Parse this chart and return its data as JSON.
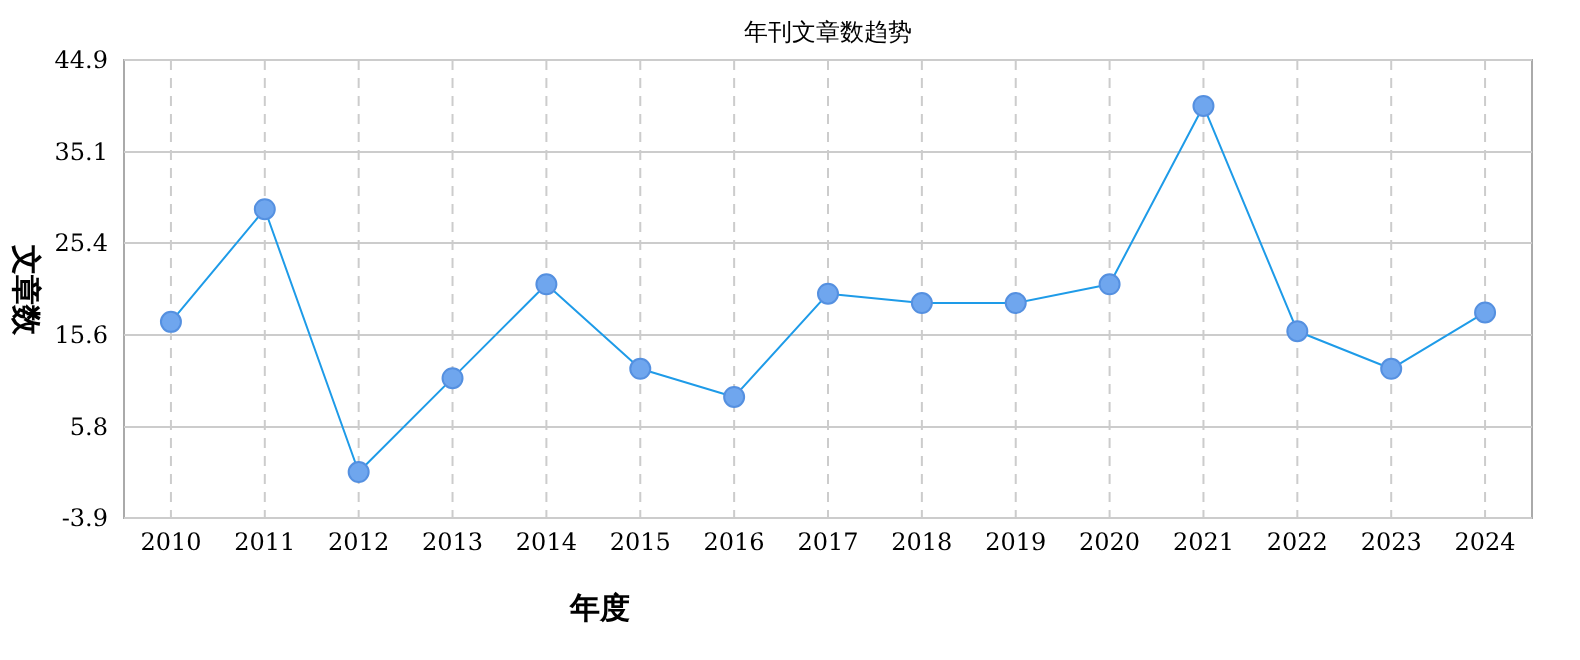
{
  "chart_data": {
    "type": "line",
    "title": "年刊文章数趋势",
    "xlabel": "年度",
    "ylabel": "文章数",
    "categories": [
      "2010",
      "2011",
      "2012",
      "2013",
      "2014",
      "2015",
      "2016",
      "2017",
      "2018",
      "2019",
      "2020",
      "2021",
      "2022",
      "2023",
      "2024"
    ],
    "series": [
      {
        "color": "#1e9be8",
        "values": [
          17,
          29,
          1,
          11,
          21,
          12,
          9,
          20,
          19,
          19,
          21,
          40,
          16,
          12,
          18
        ]
      }
    ],
    "ylim": [
      -3.9,
      44.9
    ],
    "yticks": [
      -3.9,
      5.8,
      15.6,
      25.4,
      35.1,
      44.9
    ],
    "grid": true,
    "marker": "circle",
    "line_style": "solid"
  }
}
